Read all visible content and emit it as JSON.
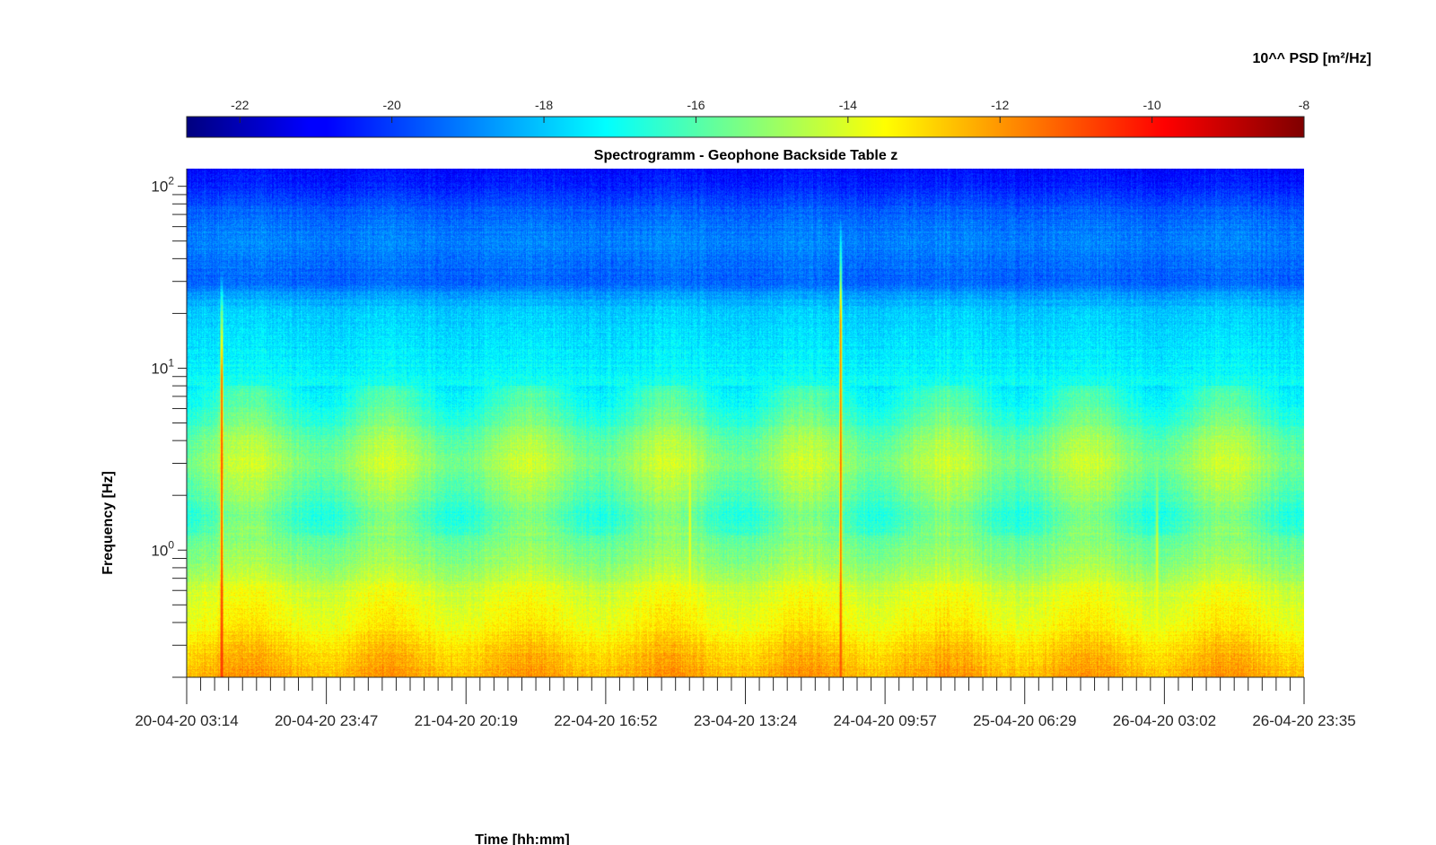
{
  "chart_data": {
    "type": "heatmap",
    "title": "Spectrogramm - Geophone Backside Table z",
    "xlabel": "Time [hh:mm]",
    "ylabel": "Frequency [Hz]",
    "x_tick_labels": [
      "20-04-20 03:14",
      "20-04-20 23:47",
      "21-04-20 20:19",
      "22-04-20 16:52",
      "23-04-20 13:24",
      "24-04-20 09:57",
      "25-04-20 06:29",
      "26-04-20 03:02",
      "26-04-20 23:35"
    ],
    "y_scale": "log",
    "y_ticks": [
      {
        "base": "10",
        "exp": "2",
        "value": 100
      },
      {
        "base": "10",
        "exp": "1",
        "value": 10
      },
      {
        "base": "10",
        "exp": "0",
        "value": 1
      }
    ],
    "ylim": [
      0.2,
      125
    ],
    "colorbar": {
      "label": "10^^ PSD [m²/Hz]",
      "ticks": [
        "-22",
        "-20",
        "-18",
        "-16",
        "-14",
        "-12",
        "-10",
        "-8"
      ],
      "tick_values": [
        -22,
        -20,
        -18,
        -16,
        -14,
        -12,
        -10,
        -8
      ],
      "range": [
        -22.7,
        -8
      ],
      "colormap": "jet",
      "placement": "top"
    },
    "psd_profile_by_frequency": [
      {
        "freq_hz": 125,
        "log10_psd": -20.7
      },
      {
        "freq_hz": 100,
        "log10_psd": -20.4
      },
      {
        "freq_hz": 70,
        "log10_psd": -19.4
      },
      {
        "freq_hz": 50,
        "log10_psd": -18.9
      },
      {
        "freq_hz": 30,
        "log10_psd": -19.5
      },
      {
        "freq_hz": 25,
        "log10_psd": -18.5
      },
      {
        "freq_hz": 20,
        "log10_psd": -17.9
      },
      {
        "freq_hz": 10,
        "log10_psd": -17.3
      },
      {
        "freq_hz": 6,
        "log10_psd": -16.4
      },
      {
        "freq_hz": 4,
        "log10_psd": -15.3
      },
      {
        "freq_hz": 3,
        "log10_psd": -14.8
      },
      {
        "freq_hz": 2,
        "log10_psd": -15.6
      },
      {
        "freq_hz": 1.5,
        "log10_psd": -16.1
      },
      {
        "freq_hz": 1.0,
        "log10_psd": -15.3
      },
      {
        "freq_hz": 0.8,
        "log10_psd": -14.9
      },
      {
        "freq_hz": 0.6,
        "log10_psd": -14.0
      },
      {
        "freq_hz": 0.4,
        "log10_psd": -13.5
      },
      {
        "freq_hz": 0.3,
        "log10_psd": -12.9
      },
      {
        "freq_hz": 0.2,
        "log10_psd": -12.2
      }
    ],
    "day_night_modulation_amplitude": 0.7,
    "transient_events": [
      {
        "time_fraction": 0.031,
        "max_freq_hz": 35,
        "peak_log10_psd": -10.2
      },
      {
        "time_fraction": 0.45,
        "max_freq_hz": 6,
        "peak_log10_psd": -13.5
      },
      {
        "time_fraction": 0.585,
        "max_freq_hz": 70,
        "peak_log10_psd": -10.8
      },
      {
        "time_fraction": 0.868,
        "max_freq_hz": 4,
        "peak_log10_psd": -13.6
      }
    ]
  }
}
